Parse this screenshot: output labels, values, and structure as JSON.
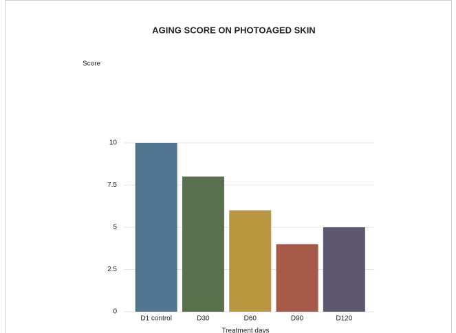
{
  "chart_data": {
    "type": "bar",
    "title": "AGING SCORE ON PHOTOAGED SKIN",
    "y_label": "Score",
    "x_label": "Treatment days",
    "categories": [
      "D1 control",
      "D30",
      "D60",
      "D90",
      "D120"
    ],
    "values": [
      10,
      8,
      6,
      4,
      5
    ],
    "colors": [
      "#527590",
      "#58704c",
      "#b8963f",
      "#a85a48",
      "#5e5772"
    ],
    "ylim": [
      0,
      10
    ],
    "yticks": [
      0,
      2.5,
      5,
      7.5,
      10
    ],
    "grid": true
  }
}
